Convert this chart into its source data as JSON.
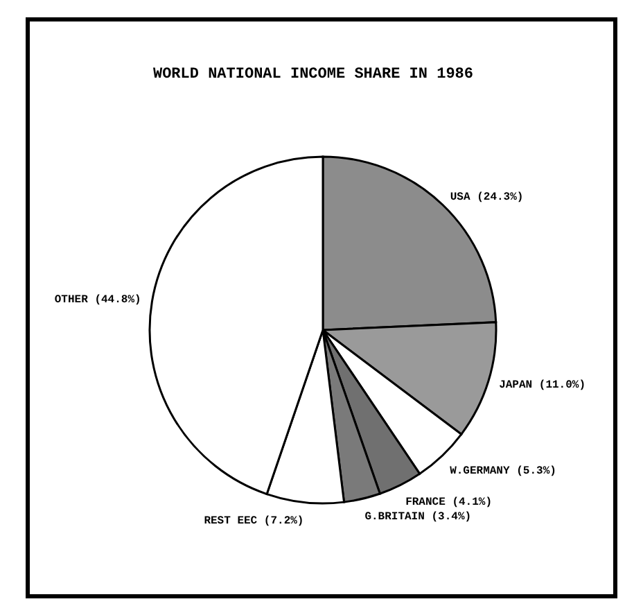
{
  "chart_data": {
    "type": "pie",
    "title": "WORLD NATIONAL INCOME SHARE IN 1986",
    "categories": [
      "USA",
      "JAPAN",
      "W.GERMANY",
      "FRANCE",
      "G.BRITAIN",
      "REST EEC",
      "OTHER"
    ],
    "values": [
      24.3,
      11.0,
      5.3,
      4.1,
      3.4,
      7.2,
      44.8
    ],
    "value_labels": [
      "(24.3%)",
      "(11.0%)",
      "(5.3%)",
      "(4.1%)",
      "(3.4%)",
      "(7.2%)",
      "(44.8%)"
    ],
    "colors": [
      "#8c8c8c",
      "#9a9a9a",
      "#ffffff",
      "#707070",
      "#7a7a7a",
      "#ffffff",
      "#ffffff"
    ]
  }
}
